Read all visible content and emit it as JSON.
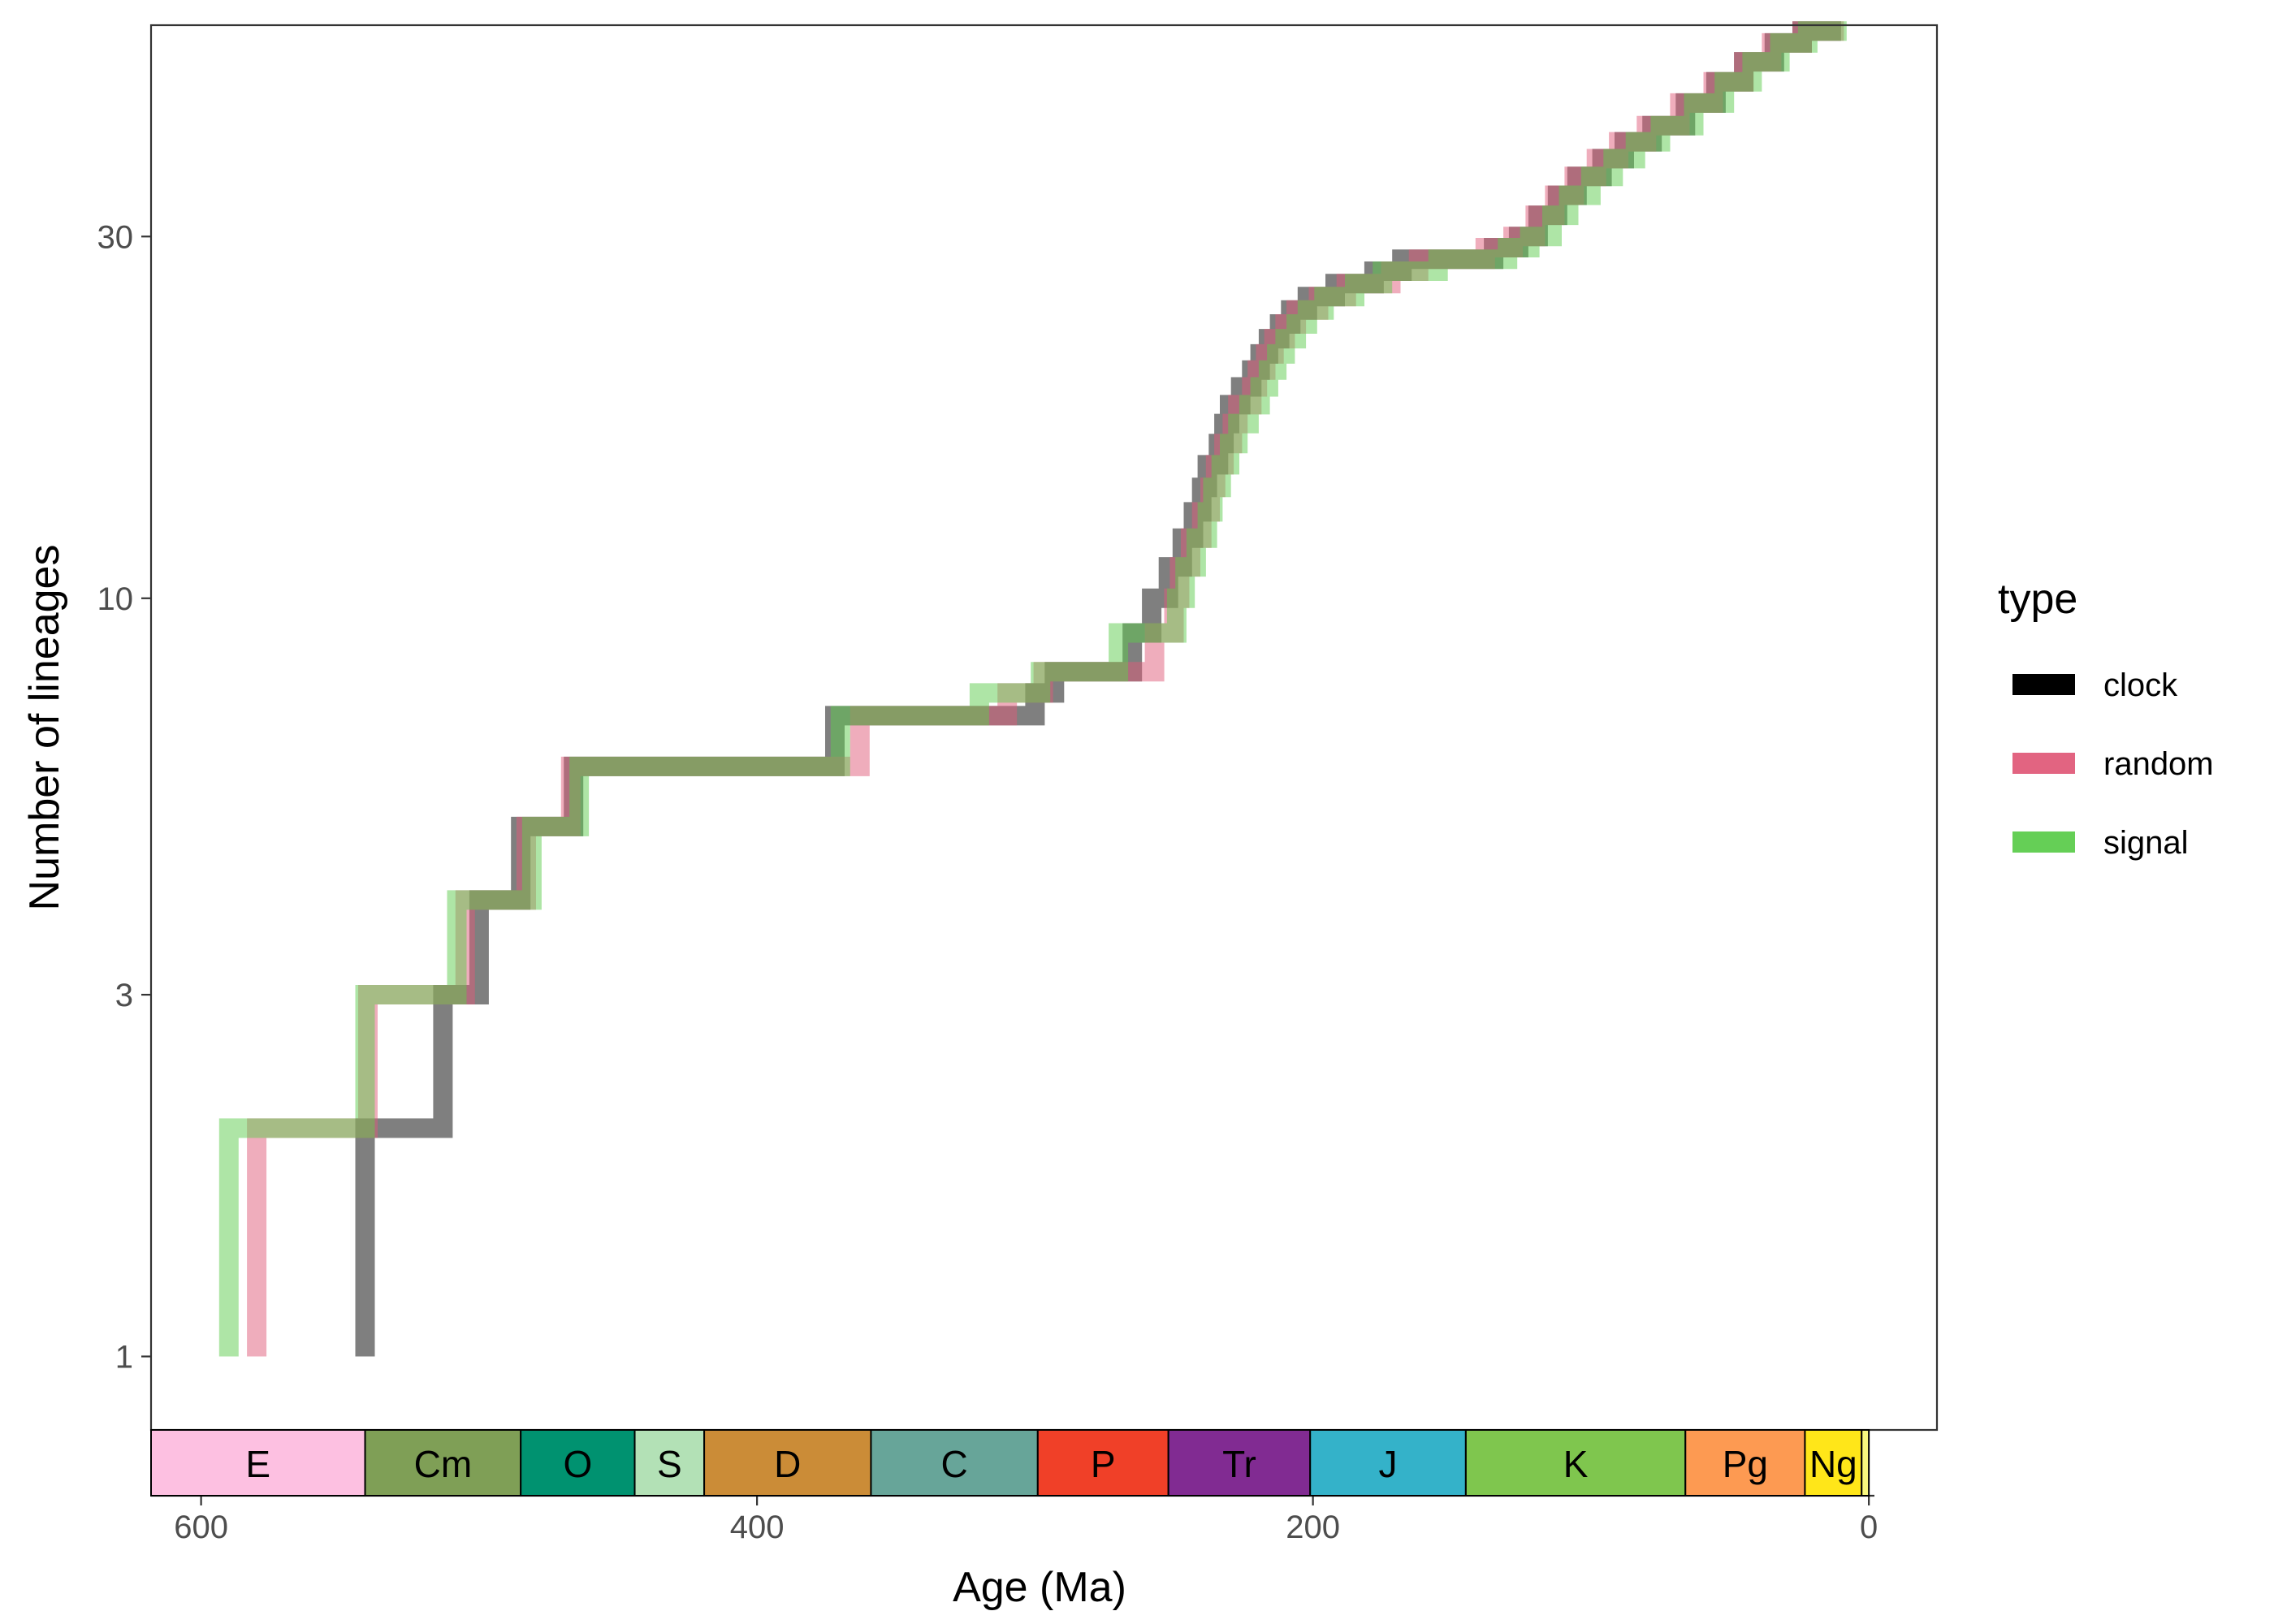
{
  "chart_data": {
    "type": "line",
    "subtype": "lineage-through-time step plot",
    "xlabel": "Age (Ma)",
    "ylabel": "Number of lineages",
    "x_reversed": true,
    "xlim": [
      618,
      -2
    ],
    "y_scale": "log",
    "ylim": [
      0.8,
      57
    ],
    "x_ticks": [
      600,
      400,
      200,
      0
    ],
    "y_ticks": [
      1,
      3,
      10,
      30
    ],
    "grid": false,
    "legend": {
      "title": "type",
      "position": "right"
    },
    "series": [
      {
        "name": "clock",
        "color": "#000000",
        "alpha": 0.5,
        "steps": [
          [
            541,
            1
          ],
          [
            541,
            2
          ],
          [
            513,
            2
          ],
          [
            513,
            3
          ],
          [
            500,
            3
          ],
          [
            500,
            4
          ],
          [
            485,
            4
          ],
          [
            485,
            5
          ],
          [
            466,
            5
          ],
          [
            466,
            6
          ],
          [
            372,
            6
          ],
          [
            372,
            7
          ],
          [
            300,
            7
          ],
          [
            300,
            7.5
          ],
          [
            293,
            7.5
          ],
          [
            293,
            8
          ],
          [
            265,
            8
          ],
          [
            265,
            9
          ],
          [
            258,
            9
          ],
          [
            258,
            10
          ],
          [
            252,
            10
          ],
          [
            252,
            11
          ],
          [
            247,
            11
          ],
          [
            247,
            12
          ],
          [
            243,
            12
          ],
          [
            243,
            13
          ],
          [
            240,
            13
          ],
          [
            240,
            14
          ],
          [
            238,
            14
          ],
          [
            238,
            15
          ],
          [
            234,
            15
          ],
          [
            234,
            16
          ],
          [
            232,
            16
          ],
          [
            232,
            17
          ],
          [
            230,
            17
          ],
          [
            230,
            18
          ],
          [
            226,
            18
          ],
          [
            226,
            19
          ],
          [
            222,
            19
          ],
          [
            222,
            20
          ],
          [
            219,
            20
          ],
          [
            219,
            21
          ],
          [
            216,
            21
          ],
          [
            216,
            22
          ],
          [
            212,
            22
          ],
          [
            212,
            23
          ],
          [
            208,
            23
          ],
          [
            208,
            24
          ],
          [
            202,
            24
          ],
          [
            202,
            25
          ],
          [
            192,
            25
          ],
          [
            192,
            26
          ],
          [
            178,
            26
          ],
          [
            178,
            27
          ],
          [
            168,
            27
          ],
          [
            168,
            28
          ],
          [
            135,
            28
          ],
          [
            135,
            29
          ],
          [
            126,
            29
          ],
          [
            126,
            30
          ],
          [
            119,
            30
          ],
          [
            119,
            32
          ],
          [
            112,
            32
          ],
          [
            112,
            34
          ],
          [
            105,
            34
          ],
          [
            105,
            36
          ],
          [
            96,
            36
          ],
          [
            96,
            38
          ],
          [
            88,
            38
          ],
          [
            88,
            40
          ],
          [
            78,
            40
          ],
          [
            78,
            42
          ],
          [
            66,
            42
          ],
          [
            66,
            45
          ],
          [
            55,
            45
          ],
          [
            55,
            48
          ],
          [
            45,
            48
          ],
          [
            45,
            51
          ],
          [
            34,
            51
          ],
          [
            34,
            54
          ],
          [
            24,
            54
          ],
          [
            24,
            56
          ],
          [
            10,
            56
          ]
        ]
      },
      {
        "name": "random",
        "color": "#E05C7A",
        "alpha": 0.5,
        "steps": [
          [
            580,
            1
          ],
          [
            580,
            2
          ],
          [
            540,
            2
          ],
          [
            540,
            3
          ],
          [
            505,
            3
          ],
          [
            505,
            4
          ],
          [
            483,
            4
          ],
          [
            483,
            5
          ],
          [
            467,
            5
          ],
          [
            467,
            6
          ],
          [
            363,
            6
          ],
          [
            363,
            7
          ],
          [
            310,
            7
          ],
          [
            310,
            7.5
          ],
          [
            297,
            7.5
          ],
          [
            297,
            8
          ],
          [
            257,
            8
          ],
          [
            257,
            9
          ],
          [
            250,
            9
          ],
          [
            250,
            10
          ],
          [
            248,
            10
          ],
          [
            248,
            11
          ],
          [
            244,
            11
          ],
          [
            244,
            12
          ],
          [
            240,
            12
          ],
          [
            240,
            13
          ],
          [
            237,
            13
          ],
          [
            237,
            14
          ],
          [
            235,
            14
          ],
          [
            235,
            15
          ],
          [
            232,
            15
          ],
          [
            232,
            16
          ],
          [
            229,
            16
          ],
          [
            229,
            17
          ],
          [
            227,
            17
          ],
          [
            227,
            18
          ],
          [
            222,
            18
          ],
          [
            222,
            19
          ],
          [
            220,
            19
          ],
          [
            220,
            20
          ],
          [
            217,
            20
          ],
          [
            217,
            21
          ],
          [
            214,
            21
          ],
          [
            214,
            22
          ],
          [
            210,
            22
          ],
          [
            210,
            23
          ],
          [
            206,
            23
          ],
          [
            206,
            24
          ],
          [
            198,
            24
          ],
          [
            198,
            25
          ],
          [
            188,
            25
          ],
          [
            188,
            26
          ],
          [
            172,
            26
          ],
          [
            172,
            27
          ],
          [
            162,
            27
          ],
          [
            162,
            28
          ],
          [
            138,
            28
          ],
          [
            138,
            29
          ],
          [
            128,
            29
          ],
          [
            128,
            30
          ],
          [
            120,
            30
          ],
          [
            120,
            32
          ],
          [
            113,
            32
          ],
          [
            113,
            34
          ],
          [
            106,
            34
          ],
          [
            106,
            36
          ],
          [
            98,
            36
          ],
          [
            98,
            38
          ],
          [
            90,
            38
          ],
          [
            90,
            40
          ],
          [
            80,
            40
          ],
          [
            80,
            42
          ],
          [
            68,
            42
          ],
          [
            68,
            45
          ],
          [
            56,
            45
          ],
          [
            56,
            48
          ],
          [
            45,
            48
          ],
          [
            45,
            51
          ],
          [
            35,
            51
          ],
          [
            35,
            54
          ],
          [
            24,
            54
          ],
          [
            24,
            56
          ],
          [
            9,
            56
          ]
        ]
      },
      {
        "name": "signal",
        "color": "#5DCC4D",
        "alpha": 0.5,
        "steps": [
          [
            590,
            1
          ],
          [
            590,
            2
          ],
          [
            541,
            2
          ],
          [
            541,
            3
          ],
          [
            508,
            3
          ],
          [
            508,
            4
          ],
          [
            481,
            4
          ],
          [
            481,
            5
          ],
          [
            464,
            5
          ],
          [
            464,
            6
          ],
          [
            370,
            6
          ],
          [
            370,
            7
          ],
          [
            320,
            7
          ],
          [
            320,
            7.5
          ],
          [
            298,
            7.5
          ],
          [
            298,
            8
          ],
          [
            270,
            8
          ],
          [
            270,
            9
          ],
          [
            249,
            9
          ],
          [
            249,
            10
          ],
          [
            246,
            10
          ],
          [
            246,
            11
          ],
          [
            242,
            11
          ],
          [
            242,
            12
          ],
          [
            238,
            12
          ],
          [
            238,
            13
          ],
          [
            236,
            13
          ],
          [
            236,
            14
          ],
          [
            233,
            14
          ],
          [
            233,
            15
          ],
          [
            230,
            15
          ],
          [
            230,
            16
          ],
          [
            227,
            16
          ],
          [
            227,
            17
          ],
          [
            223,
            17
          ],
          [
            223,
            18
          ],
          [
            219,
            18
          ],
          [
            219,
            19
          ],
          [
            216,
            19
          ],
          [
            216,
            20
          ],
          [
            213,
            20
          ],
          [
            213,
            21
          ],
          [
            210,
            21
          ],
          [
            210,
            22
          ],
          [
            206,
            22
          ],
          [
            206,
            23
          ],
          [
            202,
            23
          ],
          [
            202,
            24
          ],
          [
            196,
            24
          ],
          [
            196,
            25
          ],
          [
            185,
            25
          ],
          [
            185,
            26
          ],
          [
            175,
            26
          ],
          [
            175,
            27
          ],
          [
            155,
            27
          ],
          [
            155,
            28
          ],
          [
            130,
            28
          ],
          [
            130,
            29
          ],
          [
            122,
            29
          ],
          [
            122,
            30
          ],
          [
            114,
            30
          ],
          [
            114,
            32
          ],
          [
            108,
            32
          ],
          [
            108,
            34
          ],
          [
            100,
            34
          ],
          [
            100,
            36
          ],
          [
            92,
            36
          ],
          [
            92,
            38
          ],
          [
            84,
            38
          ],
          [
            84,
            40
          ],
          [
            75,
            40
          ],
          [
            75,
            42
          ],
          [
            63,
            42
          ],
          [
            63,
            45
          ],
          [
            52,
            45
          ],
          [
            52,
            48
          ],
          [
            42,
            48
          ],
          [
            42,
            51
          ],
          [
            32,
            51
          ],
          [
            32,
            54
          ],
          [
            22,
            54
          ],
          [
            22,
            56
          ],
          [
            8,
            56
          ]
        ]
      }
    ],
    "geologic_periods": [
      {
        "label": "E",
        "start": 635,
        "end": 541,
        "color": "#FDC0E1"
      },
      {
        "label": "Cm",
        "start": 541,
        "end": 485,
        "color": "#7F9F56"
      },
      {
        "label": "O",
        "start": 485,
        "end": 444,
        "color": "#009270"
      },
      {
        "label": "S",
        "start": 444,
        "end": 419,
        "color": "#B3E1B6"
      },
      {
        "label": "D",
        "start": 419,
        "end": 359,
        "color": "#CB8C37"
      },
      {
        "label": "C",
        "start": 359,
        "end": 299,
        "color": "#67A599"
      },
      {
        "label": "P",
        "start": 299,
        "end": 252,
        "color": "#F04028"
      },
      {
        "label": "Tr",
        "start": 252,
        "end": 201,
        "color": "#812B92"
      },
      {
        "label": "J",
        "start": 201,
        "end": 145,
        "color": "#34B2C9"
      },
      {
        "label": "K",
        "start": 145,
        "end": 66,
        "color": "#7FC64E"
      },
      {
        "label": "Pg",
        "start": 66,
        "end": 23,
        "color": "#FD9A52"
      },
      {
        "label": "Ng",
        "start": 23,
        "end": 2.6,
        "color": "#FFE619"
      },
      {
        "label": "",
        "start": 2.6,
        "end": 0,
        "color": "#F9F97F"
      }
    ]
  }
}
